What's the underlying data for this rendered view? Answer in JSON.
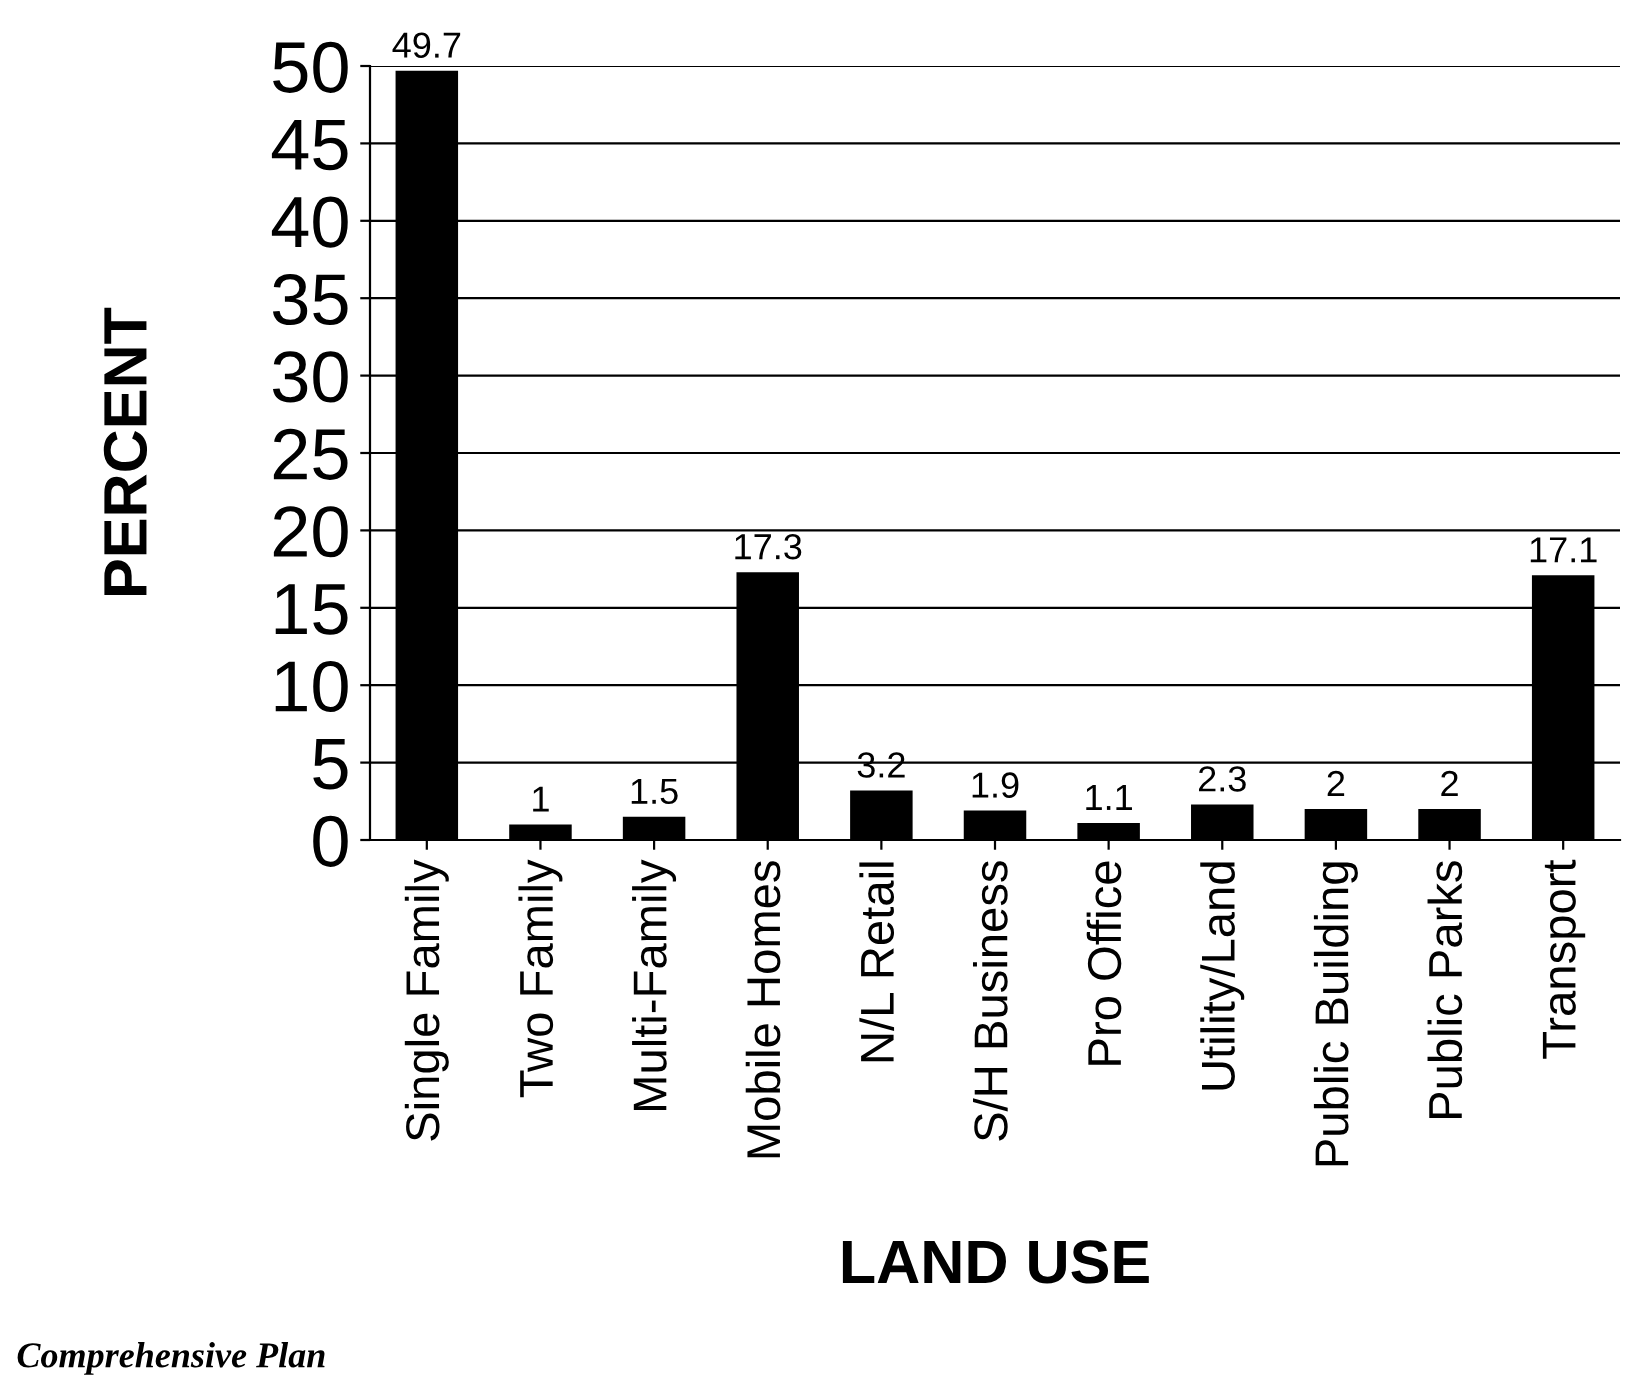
{
  "chart_data": {
    "type": "bar",
    "xlabel": "LAND USE",
    "ylabel": "PERCENT",
    "categories": [
      "Single Family",
      "Two Family",
      "Multi-Family",
      "Mobile Homes",
      "N/L Retail",
      "S/H Business",
      "Pro Office",
      "Utility/Land",
      "Public Building",
      "Public Parks",
      "Transport"
    ],
    "values": [
      49.7,
      1,
      1.5,
      17.3,
      3.2,
      1.9,
      1.1,
      2.3,
      2,
      2,
      17.1
    ],
    "color": "#000000",
    "ylim": [
      0,
      50
    ],
    "yticks": [
      0,
      5,
      10,
      15,
      20,
      25,
      30,
      35,
      40,
      45,
      50
    ],
    "grid": "y",
    "data_labels": true,
    "annotations": [
      "Comprehensive Plan"
    ]
  }
}
